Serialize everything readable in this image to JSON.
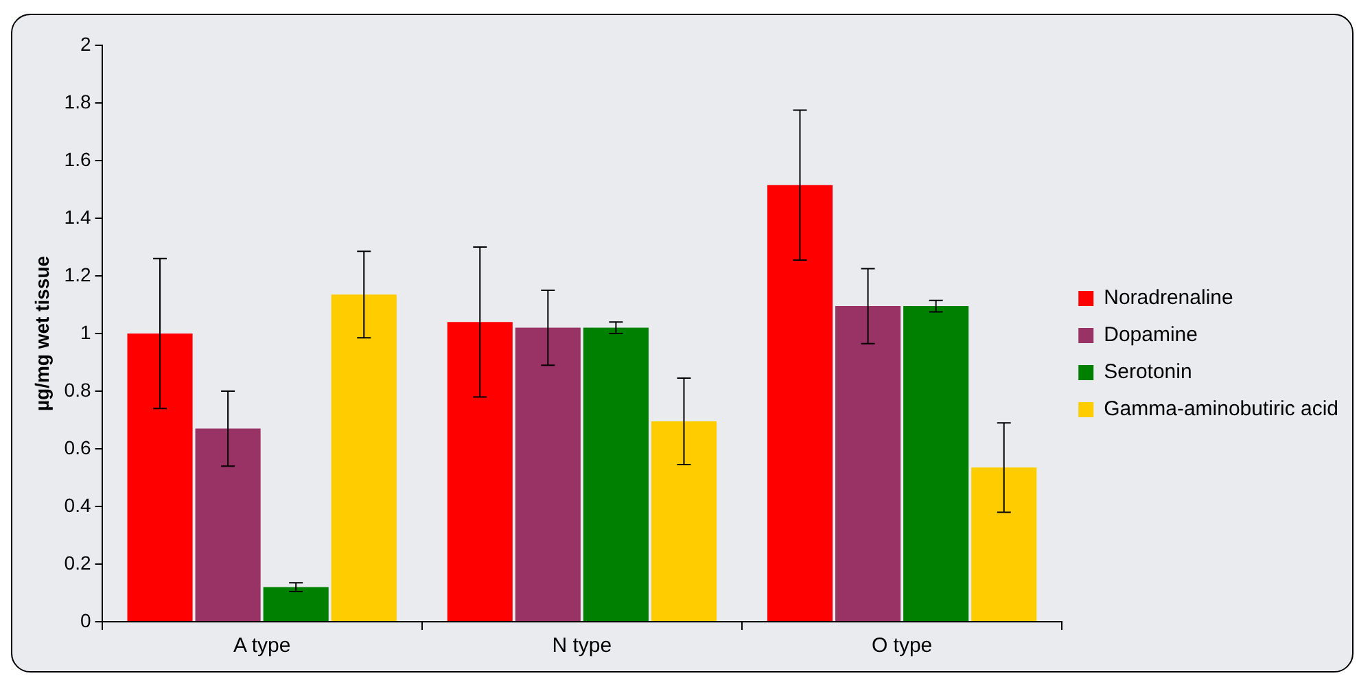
{
  "chart_data": {
    "type": "bar",
    "ylabel": "µg/mg wet tissue",
    "categories": [
      "A type",
      "N type",
      "O type"
    ],
    "series": [
      {
        "name": "Noradrenaline",
        "color": "#ff0000",
        "values": [
          1.0,
          1.04,
          1.515
        ],
        "errors": [
          0.26,
          0.26,
          0.26
        ]
      },
      {
        "name": "Dopamine",
        "color": "#993366",
        "values": [
          0.67,
          1.02,
          1.095
        ],
        "errors": [
          0.13,
          0.13,
          0.13
        ]
      },
      {
        "name": "Serotonin",
        "color": "#008000",
        "values": [
          0.12,
          1.02,
          1.095
        ],
        "errors": [
          0.015,
          0.02,
          0.02
        ]
      },
      {
        "name": "Gamma-aminobutiric acid",
        "color": "#ffcc00",
        "values": [
          1.135,
          0.695,
          0.535
        ],
        "errors": [
          0.15,
          0.15,
          0.155
        ]
      }
    ],
    "ylim": [
      0,
      2
    ],
    "yticks": [
      0,
      0.2,
      0.4,
      0.6,
      0.8,
      1,
      1.2,
      1.4,
      1.6,
      1.8,
      2
    ],
    "grid": false,
    "legend": "right"
  }
}
